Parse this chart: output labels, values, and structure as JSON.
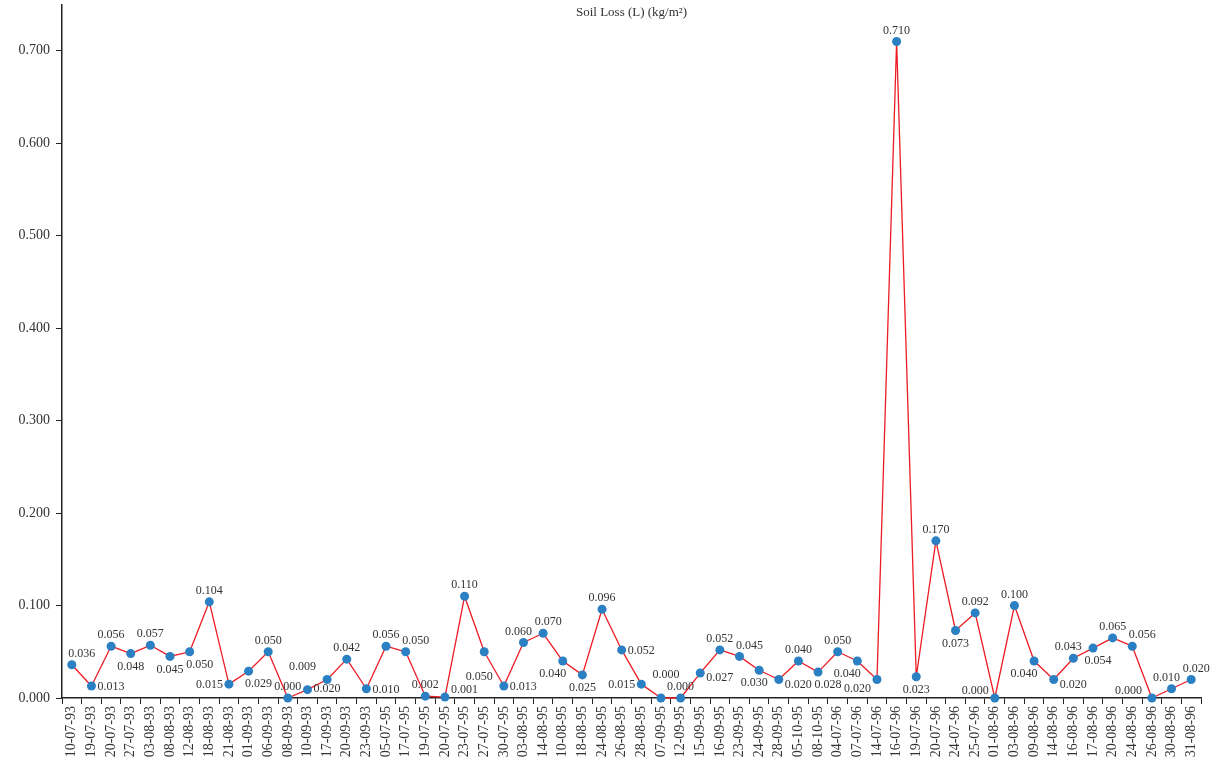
{
  "chart_data": {
    "type": "line",
    "title": "Soil Loss (L) (kg/m²)",
    "categories": [
      "10-07-93",
      "19-07-93",
      "20-07-93",
      "27-07-93",
      "03-08-93",
      "08-08-93",
      "12-08-93",
      "18-08-93",
      "21-08-93",
      "01-09-93",
      "06-09-93",
      "08-09-93",
      "10-09-93",
      "17-09-93",
      "20-09-93",
      "23-09-93",
      "05-07-95",
      "17-07-95",
      "19-07-95",
      "20-07-95",
      "23-07-95",
      "27-07-95",
      "30-07-95",
      "03-08-95",
      "14-08-95",
      "10-08-95",
      "18-08-95",
      "24-08-95",
      "26-08-95",
      "28-08-95",
      "07-09-95",
      "12-09-95",
      "15-09-95",
      "16-09-95",
      "23-09-95",
      "24-09-95",
      "28-09-95",
      "05-10-95",
      "08-10-95",
      "04-07-96",
      "07-07-96",
      "14-07-96",
      "16-07-96",
      "19-07-96",
      "20-07-96",
      "24-07-96",
      "25-07-96",
      "01-08-96",
      "03-08-96",
      "09-08-96",
      "14-08-96",
      "16-08-96",
      "17-08-96",
      "20-08-96",
      "24-08-96",
      "26-08-96",
      "30-08-96",
      "31-08-96"
    ],
    "values": [
      0.036,
      0.013,
      0.056,
      0.048,
      0.057,
      0.045,
      0.05,
      0.104,
      0.015,
      0.029,
      0.05,
      0.0,
      0.009,
      0.02,
      0.042,
      0.01,
      0.056,
      0.05,
      0.002,
      0.001,
      0.11,
      0.05,
      0.013,
      0.06,
      0.07,
      0.04,
      0.025,
      0.096,
      0.052,
      0.015,
      0.0,
      0.0,
      0.027,
      0.052,
      0.045,
      0.03,
      0.02,
      0.04,
      0.028,
      0.05,
      0.04,
      0.02,
      0.71,
      0.023,
      0.17,
      0.073,
      0.092,
      0.0,
      0.1,
      0.04,
      0.02,
      0.043,
      0.054,
      0.065,
      0.056,
      0.0,
      0.01,
      0.02
    ],
    "value_labels": [
      "0.036",
      "0.013",
      "0.056",
      "0.048",
      "0.057",
      "0.045",
      "0.050",
      "0.104",
      "0.015",
      "0.029",
      "0.050",
      "0.000",
      "0.009",
      "0.020",
      "0.042",
      "0.010",
      "0.056",
      "0.050",
      "0.002",
      "0.001",
      "0.110",
      "0.050",
      "0.013",
      "0.060",
      "0.070",
      "0.040",
      "0.025",
      "0.096",
      "0.052",
      "0.015",
      "0.000",
      "0.000",
      "0.027",
      "0.052",
      "0.045",
      "0.030",
      "0.020",
      "0.040",
      "0.028",
      "0.050",
      "0.040",
      "0.020",
      "0.710",
      "0.023",
      "0.170",
      "0.073",
      "0.092",
      "0.000",
      "0.100",
      "0.040",
      "0.020",
      "0.043",
      "0.054",
      "0.065",
      "0.056",
      "0.000",
      "0.010",
      "0.020"
    ],
    "color": "#ed1c24",
    "colors": [
      "#2a80c2",
      "#2a80c2",
      "#2a80c2",
      "#2a80c2",
      "#2a80c2",
      "#2a80c2",
      "#2a80c2",
      "#2a80c2",
      "#2a80c2",
      "#2a80c2",
      "#2a80c2",
      "#2a80c2",
      "#2a80c2",
      "#2a80c2",
      "#2a80c2",
      "#2a80c2",
      "#2a80c2",
      "#2a80c2",
      "#2a80c2",
      "#2a80c2",
      "#2a80c2",
      "#2a80c2",
      "#2a80c2",
      "#2a80c2",
      "#2a80c2",
      "#2a80c2",
      "#2a80c2",
      "#2a80c2",
      "#2a80c2",
      "#2a80c2",
      "#2a80c2",
      "#2a80c2",
      "#2a80c2",
      "#2a80c2",
      "#2a80c2",
      "#2a80c2",
      "#2a80c2",
      "#2a80c2",
      "#2a80c2",
      "#2a80c2",
      "#2a80c2",
      "#2a80c2",
      "#2a80c2",
      "#2a80c2",
      "#2a80c2",
      "#2a80c2",
      "#2a80c2",
      "#2a80c2",
      "#2a80c2",
      "#2a80c2",
      "#2a80c2",
      "#2a80c2",
      "#2a80c2",
      "#2a80c2",
      "#2a80c2",
      "#2a80c2",
      "#2a80c2",
      "#2a80c2"
    ],
    "marker": "circle",
    "ylim": [
      0,
      0.75
    ],
    "yticks": [
      {
        "value": 0,
        "label": "0.000"
      },
      {
        "value": 0.1,
        "label": "0.100"
      },
      {
        "value": 0.2,
        "label": "0.200"
      },
      {
        "value": 0.3,
        "label": "0.300"
      },
      {
        "value": 0.4,
        "label": "0.400"
      },
      {
        "value": 0.5,
        "label": "0.500"
      },
      {
        "value": 0.6,
        "label": "0.600"
      },
      {
        "value": 0.7,
        "label": "0.700"
      }
    ]
  }
}
